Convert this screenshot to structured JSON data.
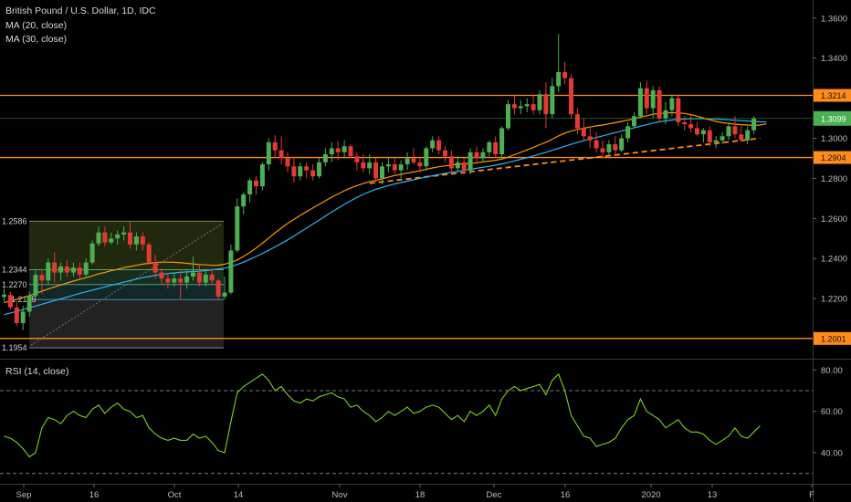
{
  "header": {
    "title": "British Pound / U.S. Dollar, 1D, IDC",
    "ma20": "MA (20, close)",
    "ma30": "MA (30, close)"
  },
  "rsi_title": "RSI (14, close)",
  "colors": {
    "up": "#4caf50",
    "down": "#e53935",
    "ma20": "#ff9800",
    "ma30": "#29b6f6",
    "hline": "#ff8c1a",
    "rsi": "#7cd321",
    "last": "#4caf50"
  },
  "chart_data": [
    {
      "type": "candlestick",
      "title": "British Pound / U.S. Dollar, 1D, IDC",
      "x_ticks": [
        "Sep",
        "16",
        "Oct",
        "14",
        "Nov",
        "18",
        "Dec",
        "16",
        "2020",
        "13",
        "F"
      ],
      "y_ticks": [
        "1.3600",
        "1.3400",
        "1.3000",
        "1.2800",
        "1.2600",
        "1.2400",
        "1.2200"
      ],
      "ylim": [
        1.19,
        1.369
      ],
      "horizontal_levels": [
        {
          "value": 1.3214,
          "label": "1.3214"
        },
        {
          "value": 1.2904,
          "label": "1.2904"
        },
        {
          "value": 1.2001,
          "label": "1.2001"
        }
      ],
      "last_price": {
        "value": 1.3099,
        "label": "1.3099"
      },
      "fib_levels": [
        {
          "value": 1.2586,
          "label": "1.2586"
        },
        {
          "value": 1.2344,
          "label": "1.2344"
        },
        {
          "value": 1.227,
          "label": "1.2270"
        },
        {
          "value": 1.2195,
          "label": "1.2195"
        },
        {
          "value": 1.1954,
          "label": "1.1954"
        }
      ],
      "candles": [
        [
          1.2208,
          1.2251,
          1.2185,
          1.222
        ],
        [
          1.2218,
          1.2235,
          1.2145,
          1.2156
        ],
        [
          1.2156,
          1.218,
          1.2062,
          1.2078
        ],
        [
          1.2078,
          1.2165,
          1.2042,
          1.2135
        ],
        [
          1.2135,
          1.2235,
          1.211,
          1.2215
        ],
        [
          1.2215,
          1.234,
          1.22,
          1.2318
        ],
        [
          1.2318,
          1.234,
          1.2225,
          1.229
        ],
        [
          1.229,
          1.24,
          1.227,
          1.238
        ],
        [
          1.238,
          1.243,
          1.228,
          1.233
        ],
        [
          1.233,
          1.238,
          1.229,
          1.236
        ],
        [
          1.236,
          1.239,
          1.231,
          1.233
        ],
        [
          1.233,
          1.238,
          1.231,
          1.2355
        ],
        [
          1.2355,
          1.238,
          1.23,
          1.232
        ],
        [
          1.232,
          1.24,
          1.231,
          1.238
        ],
        [
          1.238,
          1.249,
          1.237,
          1.2475
        ],
        [
          1.2475,
          1.256,
          1.246,
          1.253
        ],
        [
          1.253,
          1.256,
          1.246,
          1.248
        ],
        [
          1.248,
          1.253,
          1.247,
          1.25
        ],
        [
          1.25,
          1.254,
          1.247,
          1.252
        ],
        [
          1.252,
          1.256,
          1.249,
          1.253
        ],
        [
          1.253,
          1.2582,
          1.245,
          1.247
        ],
        [
          1.247,
          1.253,
          1.244,
          1.251
        ],
        [
          1.251,
          1.253,
          1.244,
          1.247
        ],
        [
          1.247,
          1.248,
          1.237,
          1.238
        ],
        [
          1.238,
          1.242,
          1.23,
          1.233
        ],
        [
          1.233,
          1.235,
          1.227,
          1.23
        ],
        [
          1.23,
          1.233,
          1.225,
          1.228
        ],
        [
          1.228,
          1.233,
          1.226,
          1.23
        ],
        [
          1.23,
          1.234,
          1.22,
          1.228
        ],
        [
          1.228,
          1.234,
          1.225,
          1.231
        ],
        [
          1.231,
          1.241,
          1.229,
          1.233
        ],
        [
          1.233,
          1.237,
          1.226,
          1.228
        ],
        [
          1.228,
          1.234,
          1.226,
          1.232
        ],
        [
          1.232,
          1.235,
          1.227,
          1.229
        ],
        [
          1.229,
          1.23,
          1.2195,
          1.221
        ],
        [
          1.221,
          1.231,
          1.2195,
          1.223
        ],
        [
          1.223,
          1.247,
          1.222,
          1.244
        ],
        [
          1.244,
          1.27,
          1.243,
          1.266
        ],
        [
          1.266,
          1.273,
          1.262,
          1.272
        ],
        [
          1.272,
          1.28,
          1.268,
          1.279
        ],
        [
          1.279,
          1.281,
          1.272,
          1.276
        ],
        [
          1.276,
          1.288,
          1.274,
          1.287
        ],
        [
          1.287,
          1.3,
          1.284,
          1.298
        ],
        [
          1.298,
          1.3015,
          1.29,
          1.294
        ],
        [
          1.294,
          1.301,
          1.287,
          1.29
        ],
        [
          1.29,
          1.293,
          1.283,
          1.286
        ],
        [
          1.286,
          1.291,
          1.278,
          1.281
        ],
        [
          1.281,
          1.288,
          1.279,
          1.286
        ],
        [
          1.286,
          1.288,
          1.28,
          1.284
        ],
        [
          1.284,
          1.287,
          1.279,
          1.281
        ],
        [
          1.281,
          1.29,
          1.28,
          1.288
        ],
        [
          1.288,
          1.295,
          1.286,
          1.292
        ],
        [
          1.292,
          1.298,
          1.288,
          1.295
        ],
        [
          1.295,
          1.2985,
          1.289,
          1.293
        ],
        [
          1.293,
          1.299,
          1.29,
          1.296
        ],
        [
          1.296,
          1.297,
          1.29,
          1.291
        ],
        [
          1.291,
          1.293,
          1.284,
          1.288
        ],
        [
          1.288,
          1.292,
          1.283,
          1.285
        ],
        [
          1.285,
          1.292,
          1.282,
          1.288
        ],
        [
          1.288,
          1.29,
          1.278,
          1.28
        ],
        [
          1.28,
          1.288,
          1.277,
          1.286
        ],
        [
          1.286,
          1.29,
          1.283,
          1.287
        ],
        [
          1.287,
          1.29,
          1.282,
          1.284
        ],
        [
          1.284,
          1.289,
          1.28,
          1.287
        ],
        [
          1.287,
          1.293,
          1.284,
          1.29
        ],
        [
          1.29,
          1.295,
          1.287,
          1.288
        ],
        [
          1.288,
          1.29,
          1.283,
          1.286
        ],
        [
          1.286,
          1.296,
          1.284,
          1.295
        ],
        [
          1.295,
          1.301,
          1.293,
          1.299
        ],
        [
          1.299,
          1.301,
          1.292,
          1.294
        ],
        [
          1.294,
          1.296,
          1.288,
          1.291
        ],
        [
          1.291,
          1.294,
          1.283,
          1.285
        ],
        [
          1.285,
          1.291,
          1.283,
          1.288
        ],
        [
          1.288,
          1.29,
          1.282,
          1.284
        ],
        [
          1.284,
          1.295,
          1.282,
          1.293
        ],
        [
          1.293,
          1.296,
          1.287,
          1.29
        ],
        [
          1.29,
          1.295,
          1.288,
          1.293
        ],
        [
          1.293,
          1.299,
          1.291,
          1.298
        ],
        [
          1.298,
          1.301,
          1.29,
          1.292
        ],
        [
          1.292,
          1.306,
          1.29,
          1.305
        ],
        [
          1.305,
          1.319,
          1.304,
          1.317
        ],
        [
          1.317,
          1.322,
          1.312,
          1.315
        ],
        [
          1.315,
          1.319,
          1.312,
          1.316
        ],
        [
          1.316,
          1.32,
          1.313,
          1.317
        ],
        [
          1.317,
          1.321,
          1.312,
          1.314
        ],
        [
          1.314,
          1.324,
          1.312,
          1.322
        ],
        [
          1.322,
          1.328,
          1.305,
          1.312
        ],
        [
          1.312,
          1.33,
          1.31,
          1.326
        ],
        [
          1.326,
          1.352,
          1.323,
          1.333
        ],
        [
          1.333,
          1.338,
          1.327,
          1.33
        ],
        [
          1.33,
          1.332,
          1.31,
          1.312
        ],
        [
          1.312,
          1.315,
          1.302,
          1.305
        ],
        [
          1.305,
          1.31,
          1.299,
          1.301
        ],
        [
          1.301,
          1.305,
          1.295,
          1.299
        ],
        [
          1.299,
          1.303,
          1.293,
          1.295
        ],
        [
          1.295,
          1.299,
          1.29,
          1.293
        ],
        [
          1.293,
          1.299,
          1.291,
          1.297
        ],
        [
          1.297,
          1.301,
          1.292,
          1.294
        ],
        [
          1.294,
          1.302,
          1.293,
          1.3
        ],
        [
          1.3,
          1.308,
          1.298,
          1.306
        ],
        [
          1.306,
          1.313,
          1.305,
          1.311
        ],
        [
          1.311,
          1.328,
          1.31,
          1.325
        ],
        [
          1.325,
          1.329,
          1.312,
          1.315
        ],
        [
          1.315,
          1.326,
          1.31,
          1.324
        ],
        [
          1.324,
          1.326,
          1.308,
          1.31
        ],
        [
          1.31,
          1.318,
          1.307,
          1.314
        ],
        [
          1.314,
          1.322,
          1.311,
          1.32
        ],
        [
          1.32,
          1.322,
          1.306,
          1.308
        ],
        [
          1.308,
          1.311,
          1.304,
          1.307
        ],
        [
          1.307,
          1.312,
          1.303,
          1.305
        ],
        [
          1.305,
          1.308,
          1.301,
          1.302
        ],
        [
          1.302,
          1.305,
          1.298,
          1.304
        ],
        [
          1.304,
          1.306,
          1.296,
          1.298
        ],
        [
          1.298,
          1.301,
          1.295,
          1.299
        ],
        [
          1.299,
          1.303,
          1.297,
          1.301
        ],
        [
          1.301,
          1.308,
          1.299,
          1.306
        ],
        [
          1.306,
          1.311,
          1.3,
          1.302
        ],
        [
          1.302,
          1.306,
          1.298,
          1.299
        ],
        [
          1.299,
          1.306,
          1.297,
          1.304
        ],
        [
          1.304,
          1.311,
          1.302,
          1.3099
        ]
      ],
      "ma20": [
        1.218,
        1.2188,
        1.2196,
        1.2205,
        1.2215,
        1.2226,
        1.2237,
        1.2248,
        1.2258,
        1.2268,
        1.2278,
        1.2287,
        1.2296,
        1.2304,
        1.2313,
        1.2323,
        1.2331,
        1.2339,
        1.2346,
        1.2354,
        1.236,
        1.2366,
        1.2372,
        1.2376,
        1.238,
        1.2382,
        1.2382,
        1.2381,
        1.2379,
        1.2376,
        1.2373,
        1.237,
        1.2368,
        1.2366,
        1.2367,
        1.2372,
        1.2381,
        1.2393,
        1.241,
        1.243,
        1.2452,
        1.2476,
        1.2502,
        1.2528,
        1.2552,
        1.2575,
        1.2595,
        1.2615,
        1.2634,
        1.2652,
        1.267,
        1.2688,
        1.2706,
        1.2722,
        1.2738,
        1.2752,
        1.2764,
        1.2774,
        1.2783,
        1.279,
        1.2797,
        1.2806,
        1.2814,
        1.282,
        1.2826,
        1.2832,
        1.2838,
        1.2845,
        1.2852,
        1.2858,
        1.2862,
        1.2866,
        1.287,
        1.2872,
        1.2874,
        1.2878,
        1.2882,
        1.2886,
        1.289,
        1.2896,
        1.2906,
        1.2918,
        1.293,
        1.2942,
        1.2954,
        1.2968,
        1.298,
        1.2995,
        1.3012,
        1.3026,
        1.3036,
        1.3044,
        1.305,
        1.3056,
        1.3062,
        1.3066,
        1.3072,
        1.3078,
        1.3084,
        1.309,
        1.3096,
        1.3106,
        1.3112,
        1.312,
        1.3124,
        1.3126,
        1.3128,
        1.3127,
        1.3124,
        1.3118,
        1.311,
        1.31,
        1.3092,
        1.3084,
        1.3078,
        1.3074,
        1.307,
        1.3068,
        1.3066,
        1.3064,
        1.3066,
        1.3072
      ],
      "ma30": [
        1.212,
        1.2128,
        1.2136,
        1.2145,
        1.2154,
        1.2163,
        1.2172,
        1.2181,
        1.219,
        1.2199,
        1.2208,
        1.2217,
        1.2226,
        1.2234,
        1.2242,
        1.225,
        1.2258,
        1.2266,
        1.2274,
        1.2282,
        1.229,
        1.2297,
        1.2304,
        1.231,
        1.2316,
        1.2321,
        1.2325,
        1.2328,
        1.2331,
        1.2333,
        1.2335,
        1.2337,
        1.234,
        1.2343,
        1.2347,
        1.2352,
        1.236,
        1.237,
        1.2382,
        1.2396,
        1.241,
        1.2425,
        1.2441,
        1.2458,
        1.2475,
        1.2493,
        1.2512,
        1.2532,
        1.2552,
        1.2572,
        1.2592,
        1.2612,
        1.2632,
        1.2651,
        1.267,
        1.2688,
        1.2705,
        1.272,
        1.2733,
        1.2745,
        1.2755,
        1.2764,
        1.2772,
        1.2779,
        1.2786,
        1.2793,
        1.28,
        1.2807,
        1.2813,
        1.2819,
        1.2825,
        1.283,
        1.2835,
        1.284,
        1.2845,
        1.285,
        1.2855,
        1.286,
        1.2866,
        1.2872,
        1.2879,
        1.2887,
        1.2895,
        1.2903,
        1.2912,
        1.2921,
        1.293,
        1.294,
        1.295,
        1.296,
        1.297,
        1.2979,
        1.2988,
        1.2996,
        1.3004,
        1.3012,
        1.302,
        1.3028,
        1.3036,
        1.3044,
        1.3052,
        1.306,
        1.3068,
        1.3076,
        1.3082,
        1.3087,
        1.3091,
        1.3094,
        1.3096,
        1.3097,
        1.3098,
        1.3098,
        1.3097,
        1.3096,
        1.3094,
        1.3092,
        1.309,
        1.3088,
        1.3086,
        1.3084,
        1.3082,
        1.3081
      ]
    },
    {
      "type": "line",
      "title": "RSI (14, close)",
      "y_ticks": [
        "80.00",
        "60.00",
        "40.00"
      ],
      "ylim": [
        25,
        85
      ],
      "bands": [
        70,
        30
      ],
      "values": [
        48,
        47,
        45,
        42,
        38,
        40,
        52,
        57,
        56,
        54,
        58,
        60,
        58,
        57,
        61,
        63,
        59,
        62,
        64,
        61,
        60,
        57,
        58,
        52,
        49,
        47,
        46,
        47,
        46,
        46,
        49,
        47,
        48,
        45,
        41,
        40,
        55,
        69,
        72,
        74,
        76,
        78,
        75,
        70,
        72,
        68,
        65,
        64,
        66,
        65,
        67,
        68,
        69,
        67,
        66,
        62,
        63,
        60,
        58,
        55,
        57,
        60,
        58,
        60,
        62,
        59,
        60,
        62,
        63,
        62,
        59,
        56,
        58,
        55,
        60,
        58,
        60,
        63,
        58,
        66,
        70,
        72,
        70,
        71,
        72,
        73,
        68,
        75,
        78,
        70,
        58,
        53,
        48,
        47,
        43,
        44,
        45,
        47,
        52,
        56,
        58,
        66,
        60,
        58,
        56,
        52,
        54,
        56,
        52,
        50,
        50,
        49,
        46,
        44,
        46,
        48,
        52,
        48,
        47,
        50,
        53
      ]
    }
  ]
}
